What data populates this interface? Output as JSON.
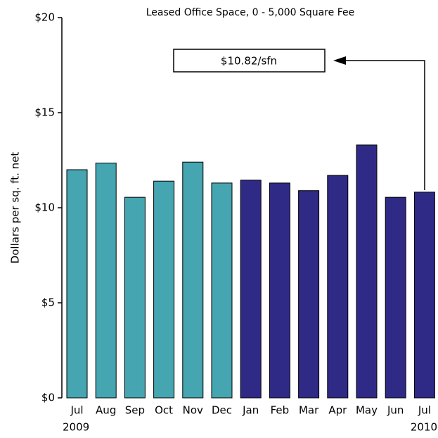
{
  "chart_data": {
    "type": "bar",
    "title": "Leased Office Space,  0 - 5,000 Square Fee",
    "ylabel": "Dollars per sq. ft. net",
    "annotation": "$10.82/sfn",
    "categories": [
      "Jul",
      "Aug",
      "Sep",
      "Oct",
      "Nov",
      "Dec",
      "Jan",
      "Feb",
      "Mar",
      "Apr",
      "May",
      "Jun",
      "Jul"
    ],
    "category_sublabels": [
      "2009",
      null,
      null,
      null,
      null,
      null,
      null,
      null,
      null,
      null,
      null,
      null,
      "2010"
    ],
    "values": [
      12.0,
      12.35,
      10.55,
      11.4,
      12.4,
      11.3,
      11.45,
      11.3,
      10.9,
      11.7,
      13.3,
      10.55,
      10.82
    ],
    "colors": [
      "#45a5b0",
      "#45a5b0",
      "#45a5b0",
      "#45a5b0",
      "#45a5b0",
      "#45a5b0",
      "#2e2a85",
      "#2e2a85",
      "#2e2a85",
      "#2e2a85",
      "#2e2a85",
      "#2e2a85",
      "#2e2a85"
    ],
    "ylim": [
      0,
      20
    ],
    "yticks": [
      {
        "value": 0,
        "label": "$0"
      },
      {
        "value": 5,
        "label": "$5"
      },
      {
        "value": 10,
        "label": "$10"
      },
      {
        "value": 15,
        "label": "$15"
      },
      {
        "value": 20,
        "label": "$20"
      }
    ]
  }
}
